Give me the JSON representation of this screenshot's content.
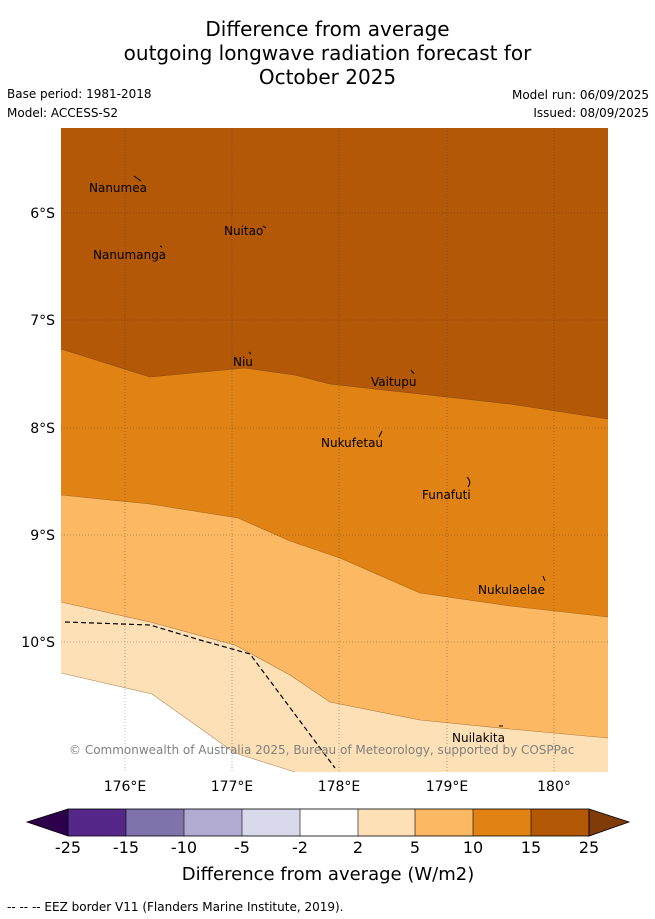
{
  "title": {
    "line1": "Difference from average",
    "line2": "outgoing longwave radiation forecast for",
    "line3": "October 2025"
  },
  "meta": {
    "base_period": "Base period: 1981-2018",
    "model": "Model: ACCESS-S2",
    "model_run": "Model run: 06/09/2025",
    "issued": "Issued: 08/09/2025"
  },
  "map": {
    "lat_ticks": [
      "6°S",
      "7°S",
      "8°S",
      "9°S",
      "10°S"
    ],
    "lon_ticks": [
      "176°E",
      "177°E",
      "178°E",
      "179°E",
      "180°"
    ],
    "places": [
      "Nanumea",
      "Nuitao",
      "Nanumanga",
      "Niu",
      "Vaitupu",
      "Nukufetau",
      "Funafuti",
      "Nukulaelae",
      "Nuilakita"
    ],
    "copyright": "© Commonwealth of Australia 2025, Bureau of Meteorology, supported by COSPPac",
    "fills": {
      "above_15": "#b35806",
      "10_to_15": "#e08214",
      "5_to_10": "#fdb863",
      "2_to_5": "#fee0b6"
    }
  },
  "colorbar": {
    "labels": [
      "-25",
      "-15",
      "-10",
      "-5",
      "-2",
      "2",
      "5",
      "10",
      "15",
      "25"
    ],
    "colors": [
      "#2d004b",
      "#542788",
      "#8073ac",
      "#b2abd2",
      "#d8daeb",
      "#ffffff",
      "#fee0b6",
      "#fdb863",
      "#e08214",
      "#b35806",
      "#7f3b08"
    ],
    "title": "Difference from average (W/m2)"
  },
  "footer": "--  --  -- EEZ border V11 (Flanders Marine Institute, 2019)."
}
